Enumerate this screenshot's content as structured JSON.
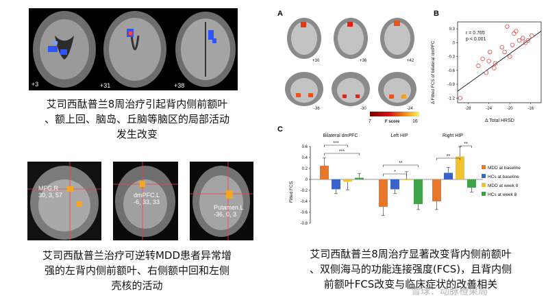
{
  "top_left_figure": {
    "slice_labels": [
      "+3",
      "+31",
      "+38"
    ]
  },
  "top_left_caption": [
    "艾司西酞普兰8周治疗引起背内侧前额叶",
    "、额上回、脑岛、丘脑等脑区的局部活动",
    "发生改变"
  ],
  "bottom_left_figure": {
    "regions": [
      {
        "name": "MFG.R",
        "coords": "30, 3, 57"
      },
      {
        "name": "dmPFC.L",
        "coords": "-6, 33, 33"
      },
      {
        "name": "Putamen.L",
        "coords": "-36, 0, 3"
      }
    ]
  },
  "bottom_left_caption": [
    "艾司西酞普兰治疗可逆转MDD患者异常增",
    "强的左背内侧前额叶、右侧额中回和左侧",
    "壳核的活动"
  ],
  "panel_a": {
    "letter": "A",
    "slice_labels": [
      "+30",
      "+36",
      "+42",
      "-36",
      "-30",
      "-24"
    ],
    "colorbar": {
      "min": "7",
      "label": "F score",
      "max": "16"
    }
  },
  "panel_b": {
    "letter": "B",
    "stats": [
      "r = 0.765",
      "p < 0.001"
    ],
    "ylabel": "Δ Fitted FCS of bilateral dmPFC",
    "xlabel": "Δ Total HRSD",
    "xticks": [
      "-28",
      "-24",
      "-20",
      "-16"
    ],
    "yticks": [
      "0.3",
      "0",
      "-0.3",
      "-0.6",
      "-0.9",
      "-1.2"
    ]
  },
  "panel_c": {
    "letter": "C",
    "ylabel": "Fitted FCS",
    "groups": [
      "Bilateral dmPFC",
      "Left HIP",
      "Right HIP"
    ],
    "yticks": [
      "0.6",
      "0.4",
      "0.2",
      "0",
      "-0.2",
      "-0.4",
      "-0.6",
      "-0.8"
    ],
    "legend": [
      "MDD at baseline",
      "HCs at baseline",
      "MDD at week 8",
      "HCs at week 8"
    ],
    "sig": [
      "***",
      "***",
      "*",
      "**",
      "**",
      "**"
    ]
  },
  "right_caption": [
    "艾司西酞普兰8周治疗显著改变背内侧前额叶",
    "、双侧海马的功能连接强度(FCS)，且背内侧",
    "前额叶FCS改变与临床症状的改善相关"
  ],
  "watermark": "雪球：动脉橙果局",
  "colors": {
    "mdd_base": "#e8762b",
    "hc_base": "#3a63c9",
    "mdd_w8": "#f2c12e",
    "hc_w8": "#3fa34a"
  },
  "chart_data": [
    {
      "type": "scatter",
      "title": "",
      "xlabel": "Δ Total HRSD",
      "ylabel": "Δ Fitted FCS of bilateral dmPFC",
      "xlim": [
        -30,
        -14
      ],
      "ylim": [
        -1.3,
        0.45
      ],
      "points": [
        {
          "x": -29.5,
          "y": -1.2
        },
        {
          "x": -26.0,
          "y": -0.5
        },
        {
          "x": -25.2,
          "y": -0.35
        },
        {
          "x": -24.5,
          "y": -0.65
        },
        {
          "x": -24.0,
          "y": -0.4
        },
        {
          "x": -23.8,
          "y": -0.2
        },
        {
          "x": -23.0,
          "y": -0.55
        },
        {
          "x": -22.8,
          "y": -0.45
        },
        {
          "x": -21.0,
          "y": -0.2
        },
        {
          "x": -20.5,
          "y": 0.35
        },
        {
          "x": -20.0,
          "y": -0.3
        },
        {
          "x": -19.5,
          "y": -0.05
        },
        {
          "x": -19.2,
          "y": 0.2
        },
        {
          "x": -18.8,
          "y": 0.25
        },
        {
          "x": -18.2,
          "y": 0.05
        },
        {
          "x": -17.5,
          "y": 0.1
        },
        {
          "x": -17.0,
          "y": 0.0
        },
        {
          "x": -16.5,
          "y": 0.05
        },
        {
          "x": -15.8,
          "y": 0.15
        },
        {
          "x": -21.5,
          "y": -0.1
        }
      ],
      "fit_line": {
        "x": [
          -30,
          -14
        ],
        "y": [
          -1.05,
          0.25
        ]
      }
    },
    {
      "type": "bar",
      "title": "",
      "categories": [
        "Bilateral dmPFC",
        "Left HIP",
        "Right HIP"
      ],
      "ylabel": "Fitted FCS",
      "ylim": [
        -0.8,
        0.6
      ],
      "series": [
        {
          "name": "MDD at baseline",
          "values": [
            0.25,
            -0.5,
            -0.4
          ],
          "errors": [
            0.14,
            0.16,
            0.15
          ]
        },
        {
          "name": "HCs at baseline",
          "values": [
            -0.18,
            -0.18,
            0.12
          ],
          "errors": [
            0.08,
            0.08,
            0.1
          ]
        },
        {
          "name": "MDD at week 8",
          "values": [
            -0.04,
            0.0,
            0.42
          ],
          "errors": [
            0.15,
            0.14,
            0.18
          ]
        },
        {
          "name": "HCs at week 8",
          "values": [
            0.03,
            -0.45,
            -0.15
          ],
          "errors": [
            0.08,
            0.1,
            0.08
          ]
        }
      ]
    }
  ]
}
